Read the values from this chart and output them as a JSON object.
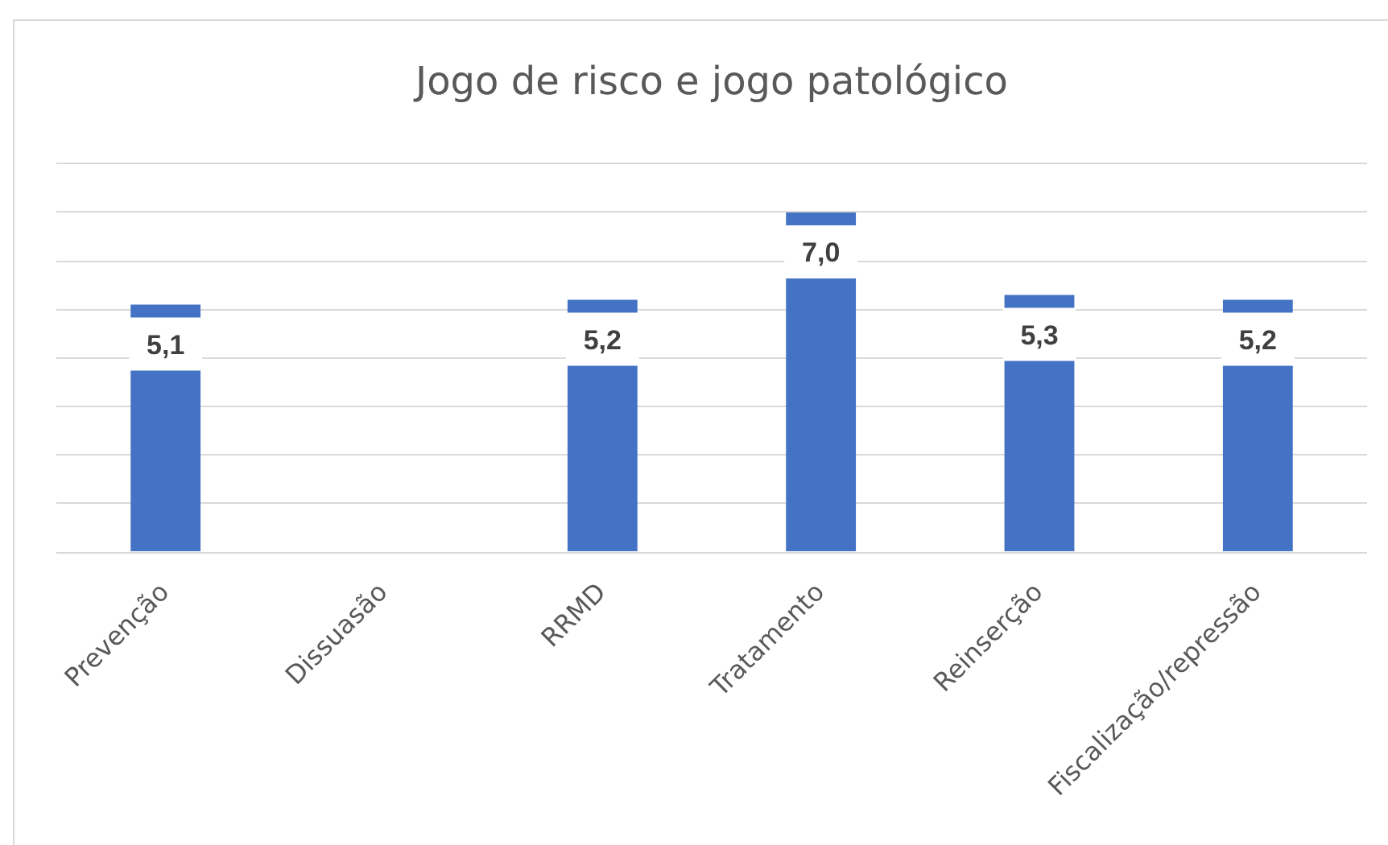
{
  "chart_data": {
    "type": "bar",
    "title": "Jogo de risco e jogo patológico",
    "categories": [
      "Prevenção",
      "Dissuasão",
      "RRMD",
      "Tratamento",
      "Reinserção",
      "Fiscalização/repressão"
    ],
    "values": [
      5.1,
      null,
      5.2,
      7.0,
      5.3,
      5.2
    ],
    "color": "#4472c4",
    "value_labels": [
      "5,1",
      null,
      "5,2",
      "7,0",
      "5,3",
      "5,2"
    ],
    "ylim": [
      0,
      8
    ],
    "yticks": [
      0,
      1,
      2,
      3,
      4,
      5,
      6,
      7,
      8
    ],
    "tick_labels": "x",
    "grid": "y"
  }
}
